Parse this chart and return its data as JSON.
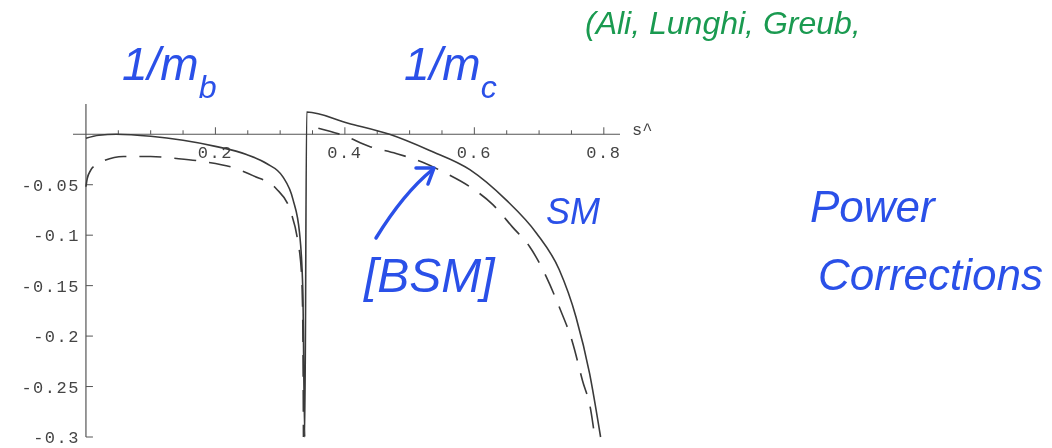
{
  "chart_data": {
    "type": "line",
    "xlabel": "s^",
    "xlim": [
      -0.02,
      0.825
    ],
    "ylim": [
      -0.3,
      0.03
    ],
    "xticks": [
      {
        "value": 0.05,
        "label": null
      },
      {
        "value": 0.1,
        "label": null
      },
      {
        "value": 0.15,
        "label": null
      },
      0.2,
      {
        "value": 0.25,
        "label": null
      },
      {
        "value": 0.3,
        "label": null
      },
      {
        "value": 0.35,
        "label": null
      },
      0.4,
      {
        "value": 0.45,
        "label": null
      },
      {
        "value": 0.5,
        "label": null
      },
      {
        "value": 0.55,
        "label": null
      },
      0.6,
      {
        "value": 0.65,
        "label": null
      },
      {
        "value": 0.7,
        "label": null
      },
      {
        "value": 0.75,
        "label": null
      },
      0.8
    ],
    "yticks": [
      -0.05,
      -0.1,
      -0.15,
      -0.2,
      -0.25,
      -0.3
    ],
    "series": [
      {
        "name": "SM",
        "color": "#3a3a3a",
        "line_style": "solid",
        "x": [
          0,
          0.02,
          0.047,
          0.1,
          0.15,
          0.2,
          0.248,
          0.279,
          0.304,
          0.32,
          0.33,
          0.335,
          0.338,
          0.341,
          0.405,
          0.469,
          0.531,
          0.593,
          0.649,
          0.696,
          0.731,
          0.757,
          0.778,
          0.795
        ],
        "values": [
          -0.004,
          -0.001,
          0,
          -0.002,
          -0.006,
          -0.012,
          -0.02,
          -0.029,
          -0.042,
          -0.065,
          -0.098,
          -0.154,
          -0.3,
          0.022,
          0.011,
          0,
          -0.016,
          -0.035,
          -0.065,
          -0.098,
          -0.134,
          -0.181,
          -0.237,
          -0.3
        ]
      },
      {
        "name": "[BSM]",
        "color": "#3a3a3a",
        "line_style": "dashed",
        "x": [
          0,
          0.002,
          0.007,
          0.0165,
          0.058,
          0.1,
          0.14,
          0.181,
          0.227,
          0.258,
          0.294,
          0.317,
          0.327,
          0.333,
          0.335,
          0.336,
          0.347,
          0.359,
          0.397,
          0.438,
          0.479,
          0.521,
          0.557,
          0.593,
          0.629,
          0.659,
          0.685,
          0.711,
          0.731,
          0.752,
          0.767,
          0.78,
          0.786
        ],
        "values": [
          -0.052,
          -0.044,
          -0.036,
          -0.03,
          -0.022,
          -0.022,
          -0.024,
          -0.027,
          -0.033,
          -0.041,
          -0.054,
          -0.078,
          -0.105,
          -0.138,
          -0.187,
          -0.3,
          null,
          0.006,
          -0.001,
          -0.012,
          -0.019,
          -0.028,
          -0.039,
          -0.052,
          -0.07,
          -0.092,
          -0.111,
          -0.141,
          -0.171,
          -0.207,
          -0.244,
          -0.274,
          -0.3
        ]
      }
    ],
    "annotations": [
      "1/m$_{b}$",
      "1/m$_{c}$",
      "Power Corrections",
      "(Ali, Lunghi, Greub,"
    ]
  }
}
